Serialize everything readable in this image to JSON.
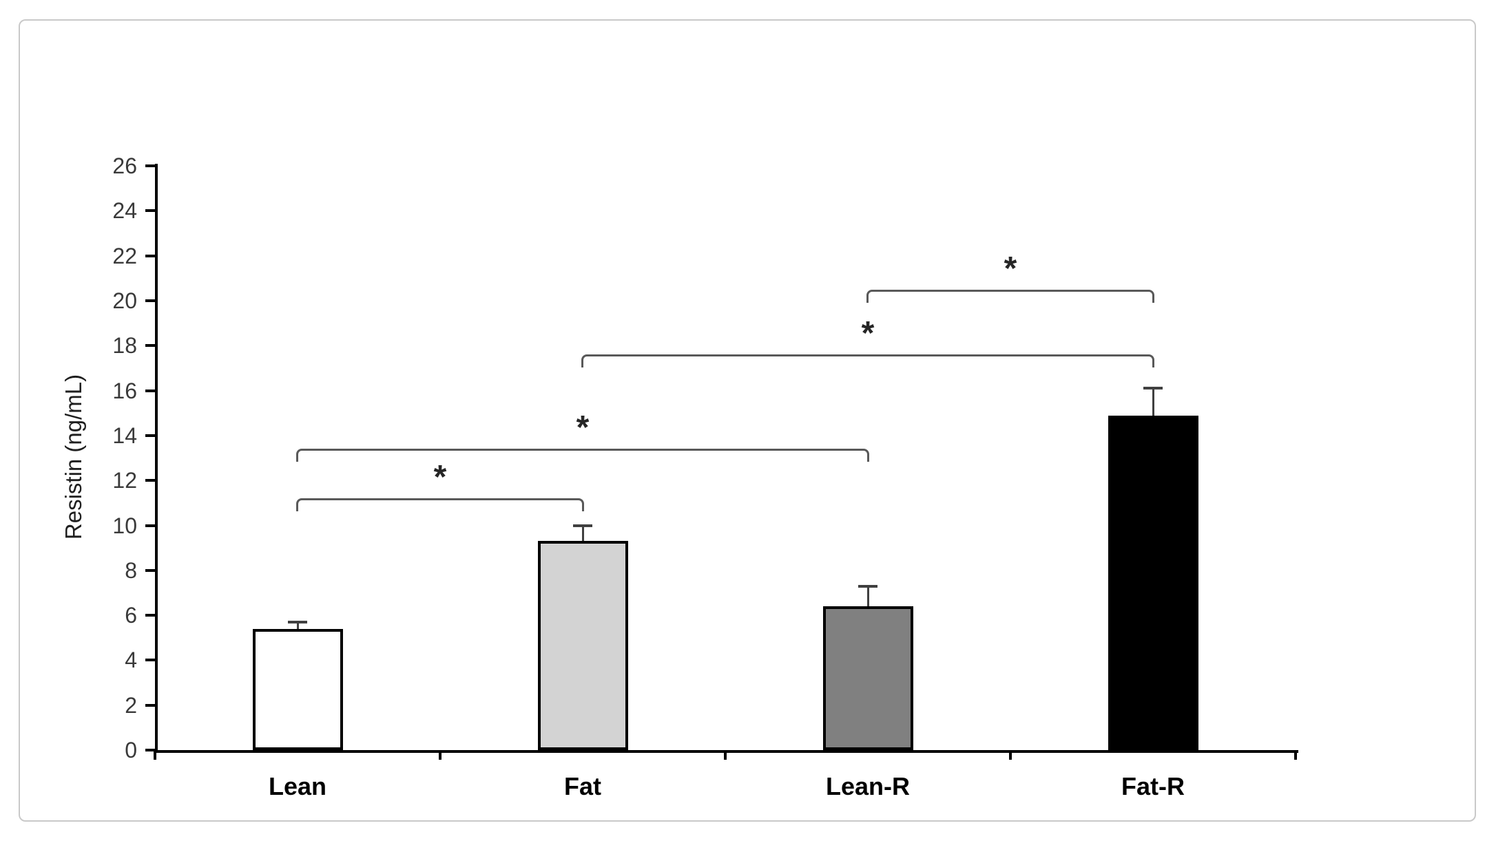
{
  "figure": {
    "background_color": "#ffffff",
    "border_color": "#c9c9c9"
  },
  "chart_data": {
    "type": "bar",
    "title": "",
    "xlabel": "",
    "ylabel": "Resistin (ng/mL)",
    "ylim": [
      0,
      26
    ],
    "ytick_step": 2,
    "ytick_labels": [
      "0",
      "2",
      "4",
      "6",
      "8",
      "10",
      "12",
      "14",
      "16",
      "18",
      "20",
      "22",
      "24",
      "26"
    ],
    "categories": [
      "Lean",
      "Fat",
      "Lean-R",
      "Fat-R"
    ],
    "values": [
      5.4,
      9.3,
      6.4,
      14.9
    ],
    "errors": [
      0.3,
      0.7,
      0.9,
      1.2
    ],
    "bar_fill_colors": [
      "#ffffff",
      "#d3d3d3",
      "#808080",
      "#000000"
    ],
    "bar_border_color": "#000000",
    "error_bar_color": "#404040",
    "grid": false,
    "legend": null,
    "significance": {
      "marker": "*",
      "bracket_color": "#595959",
      "comparisons": [
        {
          "pair": [
            0,
            1
          ],
          "label": "*",
          "height": 11.2
        },
        {
          "pair": [
            0,
            2
          ],
          "label": "*",
          "height": 13.4
        },
        {
          "pair": [
            1,
            3
          ],
          "label": "*",
          "height": 17.6
        },
        {
          "pair": [
            2,
            3
          ],
          "label": "*",
          "height": 20.5
        }
      ]
    }
  }
}
